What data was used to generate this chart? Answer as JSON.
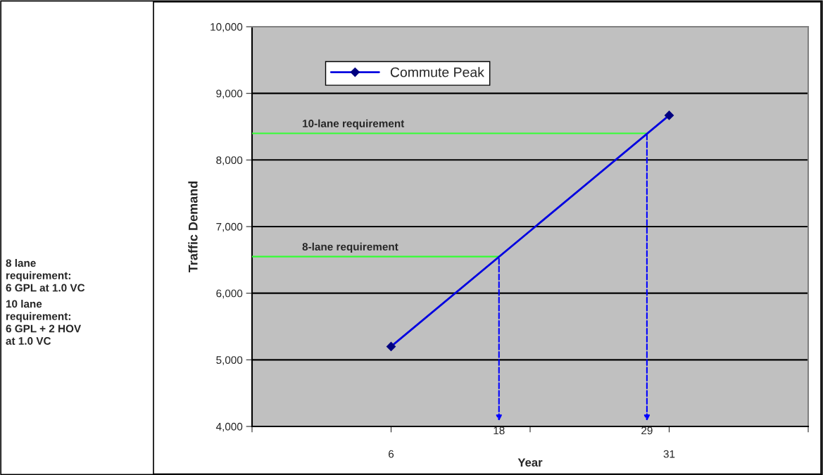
{
  "chart_data": {
    "type": "line",
    "xlabel": "Year",
    "ylabel": "Traffic Demand",
    "x": [
      6,
      31
    ],
    "series": [
      {
        "name": "Commute Peak",
        "color": "#0000e0",
        "values": [
          5200,
          8670
        ]
      }
    ],
    "xlim": [
      -6.5,
      43.5
    ],
    "xticks": [
      {
        "value": -6.5,
        "label": null
      },
      {
        "value": 6,
        "label": "6"
      },
      {
        "value": 18.5,
        "label": null
      },
      {
        "value": 31,
        "label": "31"
      },
      {
        "value": 43.5,
        "label": null
      }
    ],
    "ylim": [
      4000,
      10000
    ],
    "yticks": [
      {
        "value": 4000,
        "label": "4,000"
      },
      {
        "value": 5000,
        "label": "5,000"
      },
      {
        "value": 6000,
        "label": "6,000"
      },
      {
        "value": 7000,
        "label": "7,000"
      },
      {
        "value": 8000,
        "label": "8,000"
      },
      {
        "value": 9000,
        "label": "9,000"
      },
      {
        "value": 10000,
        "label": "10,000"
      }
    ],
    "grid": "y",
    "legend": "top left",
    "marker": "diamond",
    "line_style": "solid",
    "ref_lines": [
      {
        "axis": "y",
        "value": 6550,
        "label": "8-lane requirement",
        "color": "#33ff33"
      },
      {
        "axis": "y",
        "value": 8400,
        "label": "10-lane requirement",
        "color": "#33ff33"
      }
    ],
    "annotations": [
      {
        "text": "18",
        "x": 15.7,
        "y": 6550
      },
      {
        "text": "29",
        "x": 29,
        "y": 8400
      },
      "8 lane\nrequirement:\n6 GPL at 1.0 VC",
      "10 lane\nrequirement:\n6 GPL + 2 HOV\nat 1.0 VC"
    ]
  }
}
